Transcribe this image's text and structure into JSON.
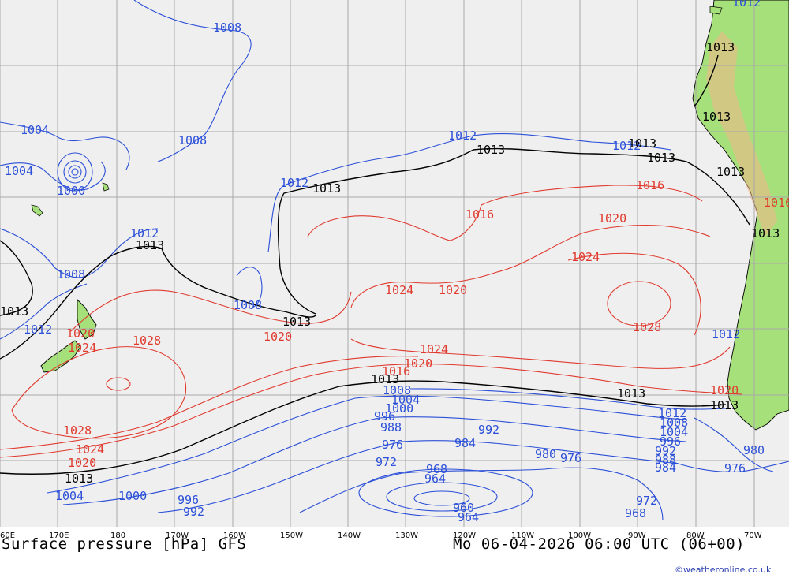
{
  "map": {
    "title_left": "Surface pressure [hPa] GFS",
    "title_right": "Mo 06-04-2026 06:00 UTC (06+00)",
    "credit": "©weatheronline.co.uk",
    "colors": {
      "ocean": "#efefef",
      "land": "#a6e07a",
      "high_isobar": "#e03a2e",
      "low_isobar": "#2b4fd8",
      "reference_isobar": "#000000",
      "grid": "#a9a9a9"
    },
    "longitude_ticks": [
      "60E",
      "170E",
      "180",
      "170W",
      "160W",
      "150W",
      "140W",
      "130W",
      "120W",
      "110W",
      "100W",
      "90W",
      "80W",
      "70W"
    ]
  },
  "isobar_labels": [
    {
      "text": "1008",
      "c": "blue"
    },
    {
      "text": "1004",
      "c": "blue"
    },
    {
      "text": "1004",
      "c": "blue"
    },
    {
      "text": "1000",
      "c": "blue"
    },
    {
      "text": "1008",
      "c": "blue"
    },
    {
      "text": "1012",
      "c": "blue"
    },
    {
      "text": "1013",
      "c": "black"
    },
    {
      "text": "1013",
      "c": "black"
    },
    {
      "text": "1008",
      "c": "blue"
    },
    {
      "text": "1012",
      "c": "blue"
    },
    {
      "text": "1020",
      "c": "red"
    },
    {
      "text": "1024",
      "c": "red"
    },
    {
      "text": "1028",
      "c": "red"
    },
    {
      "text": "1028",
      "c": "red"
    },
    {
      "text": "1024",
      "c": "red"
    },
    {
      "text": "1020",
      "c": "red"
    },
    {
      "text": "1013",
      "c": "black"
    },
    {
      "text": "1004",
      "c": "blue"
    },
    {
      "text": "1000",
      "c": "blue"
    },
    {
      "text": "996",
      "c": "blue"
    },
    {
      "text": "992",
      "c": "blue"
    },
    {
      "text": "1008",
      "c": "blue"
    },
    {
      "text": "1013",
      "c": "black"
    },
    {
      "text": "1020",
      "c": "red"
    },
    {
      "text": "1012",
      "c": "blue"
    },
    {
      "text": "1013",
      "c": "black"
    },
    {
      "text": "1012",
      "c": "blue"
    },
    {
      "text": "1013",
      "c": "black"
    },
    {
      "text": "1012",
      "c": "blue"
    },
    {
      "text": "1013",
      "c": "black"
    },
    {
      "text": "1016",
      "c": "red"
    },
    {
      "text": "1016",
      "c": "red"
    },
    {
      "text": "1020",
      "c": "red"
    },
    {
      "text": "1024",
      "c": "red"
    },
    {
      "text": "1020",
      "c": "red"
    },
    {
      "text": "1024",
      "c": "red"
    },
    {
      "text": "1028",
      "c": "red"
    },
    {
      "text": "1024",
      "c": "red"
    },
    {
      "text": "1020",
      "c": "red"
    },
    {
      "text": "1016",
      "c": "red"
    },
    {
      "text": "1013",
      "c": "black"
    },
    {
      "text": "1008",
      "c": "blue"
    },
    {
      "text": "1004",
      "c": "blue"
    },
    {
      "text": "1000",
      "c": "blue"
    },
    {
      "text": "996",
      "c": "blue"
    },
    {
      "text": "988",
      "c": "blue"
    },
    {
      "text": "992",
      "c": "blue"
    },
    {
      "text": "984",
      "c": "blue"
    },
    {
      "text": "976",
      "c": "blue"
    },
    {
      "text": "972",
      "c": "blue"
    },
    {
      "text": "968",
      "c": "blue"
    },
    {
      "text": "964",
      "c": "blue"
    },
    {
      "text": "960",
      "c": "blue"
    },
    {
      "text": "964",
      "c": "blue"
    },
    {
      "text": "980",
      "c": "blue"
    },
    {
      "text": "976",
      "c": "blue"
    },
    {
      "text": "972",
      "c": "blue"
    },
    {
      "text": "968",
      "c": "blue"
    },
    {
      "text": "1012",
      "c": "blue"
    },
    {
      "text": "1008",
      "c": "blue"
    },
    {
      "text": "1004",
      "c": "blue"
    },
    {
      "text": "996",
      "c": "blue"
    },
    {
      "text": "992",
      "c": "blue"
    },
    {
      "text": "988",
      "c": "blue"
    },
    {
      "text": "984",
      "c": "blue"
    },
    {
      "text": "1013",
      "c": "black"
    },
    {
      "text": "980",
      "c": "blue"
    },
    {
      "text": "976",
      "c": "blue"
    },
    {
      "text": "1012",
      "c": "blue"
    },
    {
      "text": "1013",
      "c": "black"
    },
    {
      "text": "1013",
      "c": "black"
    },
    {
      "text": "1013",
      "c": "black"
    },
    {
      "text": "1013",
      "c": "black"
    },
    {
      "text": "1013",
      "c": "black"
    },
    {
      "text": "1012",
      "c": "blue"
    },
    {
      "text": "1020",
      "c": "red"
    },
    {
      "text": "1016",
      "c": "red"
    },
    {
      "text": "1013",
      "c": "black"
    },
    {
      "text": "1016",
      "c": "red"
    }
  ]
}
